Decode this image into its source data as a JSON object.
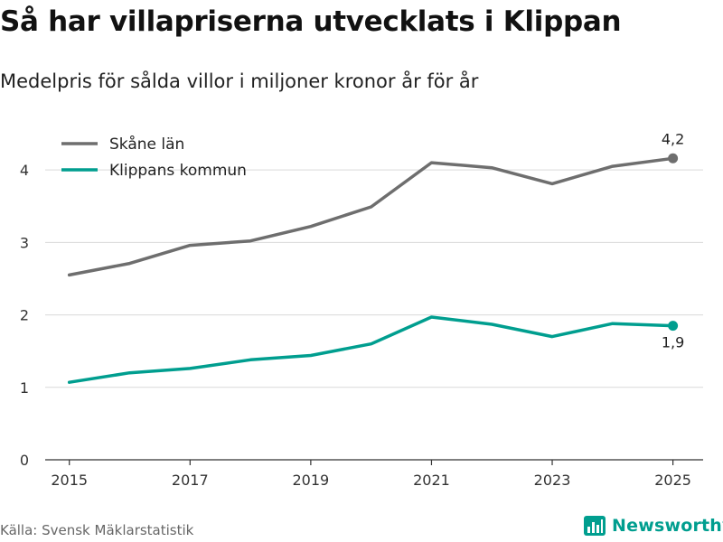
{
  "header": {
    "title": "Så har villapriserna utvecklats i Klippan",
    "subtitle": "Medelpris för sålda villor i miljoner kronor år för år"
  },
  "footer": {
    "source": "Källa: Svensk Mäklarstatistik",
    "brand": "Newsworthy"
  },
  "colors": {
    "skane": "#6e6e6e",
    "klippan": "#009e8f",
    "grid": "#d9d9d9",
    "axis": "#333333"
  },
  "chart_data": {
    "type": "line",
    "title": "Så har villapriserna utvecklats i Klippan",
    "subtitle": "Medelpris för sålda villor i miljoner kronor år för år",
    "xlabel": "",
    "ylabel": "",
    "x": [
      2015,
      2016,
      2017,
      2018,
      2019,
      2020,
      2021,
      2022,
      2023,
      2024,
      2025
    ],
    "xticks": [
      "2015",
      "2017",
      "2019",
      "2021",
      "2023",
      "2025"
    ],
    "xtick_values": [
      2015,
      2017,
      2019,
      2021,
      2023,
      2025
    ],
    "yticks": [
      "0",
      "1",
      "2",
      "3",
      "4"
    ],
    "ytick_values": [
      0,
      1,
      2,
      3,
      4
    ],
    "xlim": [
      2014.6,
      2025.5
    ],
    "ylim": [
      0,
      4.6
    ],
    "grid": true,
    "legend_position": "top-left",
    "series": [
      {
        "name": "Skåne län",
        "color_key": "skane",
        "values": [
          2.55,
          2.71,
          2.96,
          3.02,
          3.22,
          3.49,
          4.1,
          4.03,
          3.81,
          4.05,
          4.16
        ],
        "end_label": "4,2",
        "end_label_side": "above"
      },
      {
        "name": "Klippans kommun",
        "color_key": "klippan",
        "values": [
          1.07,
          1.2,
          1.26,
          1.38,
          1.44,
          1.6,
          1.97,
          1.87,
          1.7,
          1.88,
          1.85
        ],
        "end_label": "1,9",
        "end_label_side": "below"
      }
    ]
  }
}
